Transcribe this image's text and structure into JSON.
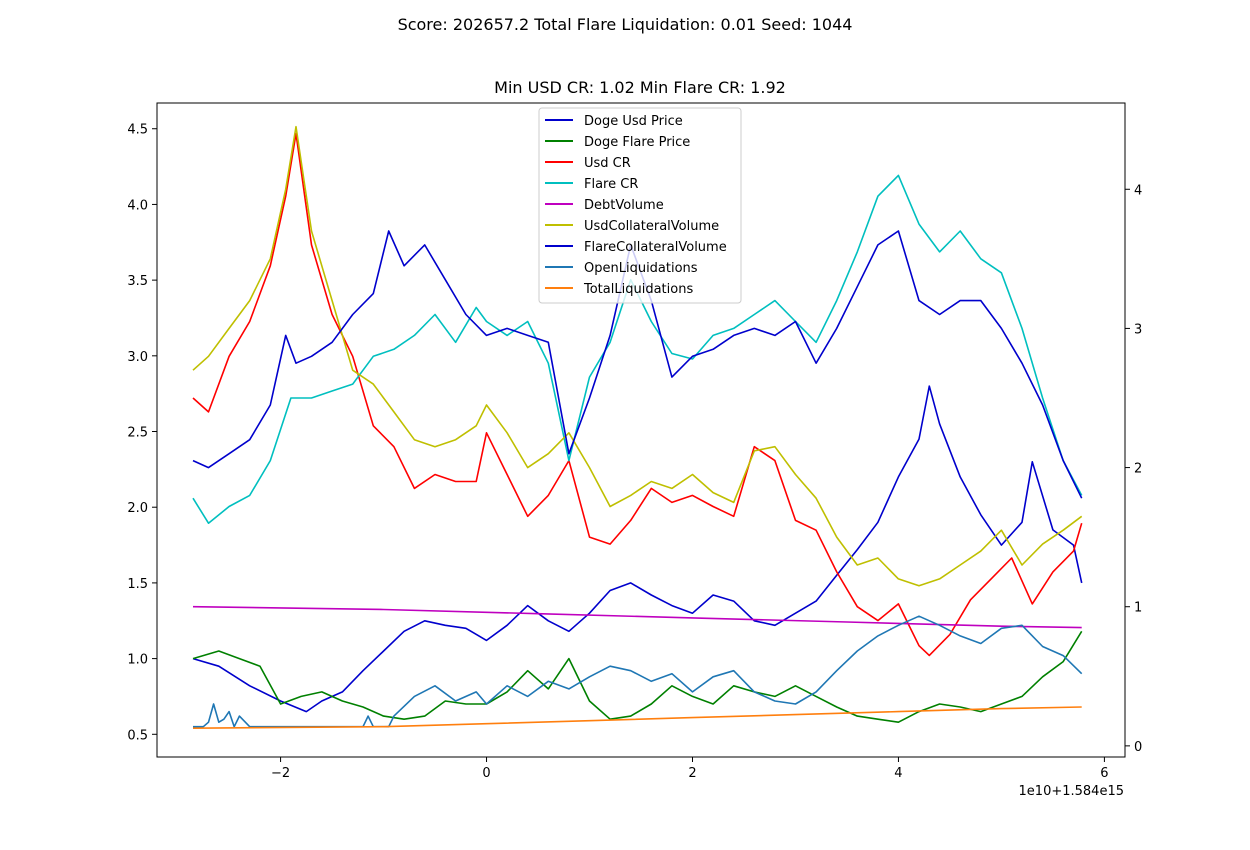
{
  "suptitle": "Score: 202657.2 Total Flare Liquidation: 0.01 Seed: 1044",
  "chart_data": {
    "type": "line",
    "title": "Min USD CR: 1.02 Min Flare CR: 1.92",
    "x_offset_label": "1e10+1.584e15",
    "xlim": [
      -3.2,
      6.2
    ],
    "xticks": [
      -2,
      0,
      2,
      4,
      6
    ],
    "xtick_labels": [
      "−2",
      "0",
      "2",
      "4",
      "6"
    ],
    "ylim_left": [
      0.35,
      4.67
    ],
    "yticks_left": [
      0.5,
      1.0,
      1.5,
      2.0,
      2.5,
      3.0,
      3.5,
      4.0,
      4.5
    ],
    "ytick_labels_left": [
      "0.5",
      "1.0",
      "1.5",
      "2.0",
      "2.5",
      "3.0",
      "3.5",
      "4.0",
      "4.5"
    ],
    "ylim_right": [
      -0.08,
      4.62
    ],
    "yticks_right": [
      0,
      1,
      2,
      3,
      4
    ],
    "ytick_labels_right": [
      "0",
      "1",
      "2",
      "3",
      "4"
    ],
    "legend_position": "upper center",
    "series": [
      {
        "name": "Doge Usd Price",
        "color": "#0000cc",
        "axis": "left",
        "x": [
          -2.85,
          -2.6,
          -2.3,
          -2.0,
          -1.75,
          -1.6,
          -1.4,
          -1.2,
          -1.0,
          -0.8,
          -0.6,
          -0.4,
          -0.2,
          0.0,
          0.2,
          0.4,
          0.6,
          0.8,
          1.0,
          1.2,
          1.4,
          1.6,
          1.8,
          2.0,
          2.2,
          2.4,
          2.6,
          2.8,
          3.0,
          3.2,
          3.4,
          3.6,
          3.8,
          4.0,
          4.2,
          4.3,
          4.4,
          4.6,
          4.8,
          5.0,
          5.2,
          5.3,
          5.5,
          5.7,
          5.78
        ],
        "y": [
          1.0,
          0.95,
          0.82,
          0.72,
          0.65,
          0.72,
          0.78,
          0.92,
          1.05,
          1.18,
          1.25,
          1.22,
          1.2,
          1.12,
          1.22,
          1.35,
          1.25,
          1.18,
          1.3,
          1.45,
          1.5,
          1.42,
          1.35,
          1.3,
          1.42,
          1.38,
          1.25,
          1.22,
          1.3,
          1.38,
          1.55,
          1.72,
          1.9,
          2.2,
          2.45,
          2.8,
          2.55,
          2.2,
          1.95,
          1.75,
          1.9,
          2.3,
          1.85,
          1.75,
          1.5
        ]
      },
      {
        "name": "Doge Flare Price",
        "color": "#008000",
        "axis": "left",
        "x": [
          -2.85,
          -2.6,
          -2.4,
          -2.2,
          -2.0,
          -1.8,
          -1.6,
          -1.4,
          -1.2,
          -1.0,
          -0.8,
          -0.6,
          -0.4,
          -0.2,
          0.0,
          0.2,
          0.4,
          0.6,
          0.8,
          1.0,
          1.2,
          1.4,
          1.6,
          1.8,
          2.0,
          2.2,
          2.4,
          2.6,
          2.8,
          3.0,
          3.2,
          3.4,
          3.6,
          3.8,
          4.0,
          4.2,
          4.4,
          4.6,
          4.8,
          5.0,
          5.2,
          5.4,
          5.6,
          5.78
        ],
        "y": [
          1.0,
          1.05,
          1.0,
          0.95,
          0.7,
          0.75,
          0.78,
          0.72,
          0.68,
          0.62,
          0.6,
          0.62,
          0.72,
          0.7,
          0.7,
          0.78,
          0.92,
          0.8,
          1.0,
          0.72,
          0.6,
          0.62,
          0.7,
          0.82,
          0.75,
          0.7,
          0.82,
          0.78,
          0.75,
          0.82,
          0.75,
          0.68,
          0.62,
          0.6,
          0.58,
          0.65,
          0.7,
          0.68,
          0.65,
          0.7,
          0.75,
          0.88,
          0.98,
          1.18
        ]
      },
      {
        "name": "Usd CR",
        "color": "#ff0000",
        "axis": "right",
        "x": [
          -2.85,
          -2.7,
          -2.5,
          -2.3,
          -2.1,
          -1.95,
          -1.85,
          -1.7,
          -1.5,
          -1.3,
          -1.1,
          -0.9,
          -0.7,
          -0.5,
          -0.3,
          -0.1,
          0.0,
          0.2,
          0.4,
          0.6,
          0.8,
          1.0,
          1.2,
          1.4,
          1.6,
          1.8,
          2.0,
          2.2,
          2.4,
          2.6,
          2.8,
          3.0,
          3.2,
          3.4,
          3.6,
          3.8,
          4.0,
          4.2,
          4.3,
          4.5,
          4.7,
          4.9,
          5.1,
          5.3,
          5.5,
          5.7,
          5.78
        ],
        "y": [
          2.5,
          2.4,
          2.8,
          3.05,
          3.45,
          3.95,
          4.4,
          3.6,
          3.1,
          2.8,
          2.3,
          2.15,
          1.85,
          1.95,
          1.9,
          1.9,
          2.25,
          1.95,
          1.65,
          1.8,
          2.05,
          1.5,
          1.45,
          1.62,
          1.85,
          1.75,
          1.8,
          1.72,
          1.65,
          2.15,
          2.05,
          1.62,
          1.55,
          1.25,
          1.0,
          0.9,
          1.02,
          0.72,
          0.65,
          0.8,
          1.05,
          1.2,
          1.35,
          1.02,
          1.25,
          1.4,
          1.6
        ]
      },
      {
        "name": "Flare CR",
        "color": "#00bfbf",
        "axis": "right",
        "x": [
          -2.85,
          -2.7,
          -2.5,
          -2.3,
          -2.1,
          -1.9,
          -1.7,
          -1.5,
          -1.3,
          -1.1,
          -0.9,
          -0.7,
          -0.5,
          -0.3,
          -0.1,
          0.0,
          0.2,
          0.4,
          0.6,
          0.8,
          1.0,
          1.2,
          1.4,
          1.6,
          1.8,
          2.0,
          2.2,
          2.4,
          2.6,
          2.8,
          3.0,
          3.2,
          3.4,
          3.6,
          3.8,
          4.0,
          4.2,
          4.4,
          4.6,
          4.8,
          5.0,
          5.2,
          5.4,
          5.6,
          5.78
        ],
        "y": [
          1.78,
          1.6,
          1.72,
          1.8,
          2.05,
          2.5,
          2.5,
          2.55,
          2.6,
          2.8,
          2.85,
          2.95,
          3.1,
          2.9,
          3.15,
          3.05,
          2.95,
          3.05,
          2.75,
          2.05,
          2.65,
          2.9,
          3.35,
          3.05,
          2.82,
          2.78,
          2.95,
          3.0,
          3.1,
          3.2,
          3.05,
          2.9,
          3.2,
          3.55,
          3.95,
          4.1,
          3.75,
          3.55,
          3.7,
          3.5,
          3.4,
          3.0,
          2.5,
          2.05,
          1.8
        ]
      },
      {
        "name": "DebtVolume",
        "color": "#bf00bf",
        "axis": "right",
        "x": [
          -2.85,
          -1.0,
          0.5,
          2.0,
          3.5,
          5.0,
          5.78
        ],
        "y": [
          1.0,
          0.98,
          0.95,
          0.92,
          0.89,
          0.86,
          0.85
        ]
      },
      {
        "name": "UsdCollateralVolume",
        "color": "#bfbf00",
        "axis": "right",
        "x": [
          -2.85,
          -2.7,
          -2.5,
          -2.3,
          -2.1,
          -1.95,
          -1.85,
          -1.7,
          -1.5,
          -1.3,
          -1.1,
          -0.9,
          -0.7,
          -0.5,
          -0.3,
          -0.1,
          0.0,
          0.2,
          0.4,
          0.6,
          0.8,
          1.0,
          1.2,
          1.4,
          1.6,
          1.8,
          2.0,
          2.2,
          2.4,
          2.6,
          2.8,
          3.0,
          3.2,
          3.4,
          3.6,
          3.8,
          4.0,
          4.2,
          4.4,
          4.6,
          4.8,
          5.0,
          5.2,
          5.4,
          5.6,
          5.78
        ],
        "y": [
          2.7,
          2.8,
          3.0,
          3.2,
          3.5,
          4.0,
          4.45,
          3.7,
          3.2,
          2.7,
          2.6,
          2.4,
          2.2,
          2.15,
          2.2,
          2.3,
          2.45,
          2.25,
          2.0,
          2.1,
          2.25,
          2.0,
          1.72,
          1.8,
          1.9,
          1.85,
          1.95,
          1.82,
          1.75,
          2.12,
          2.15,
          1.95,
          1.78,
          1.5,
          1.3,
          1.35,
          1.2,
          1.15,
          1.2,
          1.3,
          1.4,
          1.55,
          1.3,
          1.45,
          1.55,
          1.65
        ]
      },
      {
        "name": "FlareCollateralVolume",
        "color": "#0000cc",
        "axis": "right",
        "x": [
          -2.85,
          -2.7,
          -2.5,
          -2.3,
          -2.1,
          -1.95,
          -1.85,
          -1.7,
          -1.5,
          -1.3,
          -1.1,
          -0.95,
          -0.8,
          -0.6,
          -0.4,
          -0.2,
          0.0,
          0.2,
          0.4,
          0.6,
          0.8,
          1.0,
          1.2,
          1.4,
          1.6,
          1.8,
          2.0,
          2.2,
          2.4,
          2.6,
          2.8,
          3.0,
          3.2,
          3.4,
          3.6,
          3.8,
          4.0,
          4.2,
          4.4,
          4.6,
          4.8,
          5.0,
          5.2,
          5.4,
          5.6,
          5.78
        ],
        "y": [
          2.05,
          2.0,
          2.1,
          2.2,
          2.45,
          2.95,
          2.75,
          2.8,
          2.9,
          3.1,
          3.25,
          3.7,
          3.45,
          3.6,
          3.35,
          3.1,
          2.95,
          3.0,
          2.95,
          2.9,
          2.1,
          2.5,
          2.95,
          3.6,
          3.2,
          2.65,
          2.8,
          2.85,
          2.95,
          3.0,
          2.95,
          3.05,
          2.75,
          3.0,
          3.3,
          3.6,
          3.7,
          3.2,
          3.1,
          3.2,
          3.2,
          3.0,
          2.75,
          2.45,
          2.05,
          1.78
        ]
      },
      {
        "name": "OpenLiquidations",
        "color": "#1f77b4",
        "axis": "left",
        "x": [
          -2.85,
          -2.8,
          -2.75,
          -2.7,
          -2.65,
          -2.6,
          -2.55,
          -2.5,
          -2.45,
          -2.4,
          -2.3,
          -2.0,
          -1.5,
          -1.2,
          -1.15,
          -1.1,
          -1.0,
          -0.95,
          -0.9,
          -0.7,
          -0.5,
          -0.3,
          -0.1,
          0.0,
          0.2,
          0.4,
          0.6,
          0.8,
          1.0,
          1.2,
          1.4,
          1.6,
          1.8,
          2.0,
          2.2,
          2.4,
          2.6,
          2.8,
          3.0,
          3.2,
          3.4,
          3.6,
          3.8,
          4.0,
          4.2,
          4.4,
          4.6,
          4.8,
          5.0,
          5.2,
          5.4,
          5.6,
          5.78
        ],
        "y": [
          0.55,
          0.55,
          0.55,
          0.58,
          0.7,
          0.58,
          0.6,
          0.65,
          0.55,
          0.62,
          0.55,
          0.55,
          0.55,
          0.55,
          0.62,
          0.55,
          0.55,
          0.55,
          0.62,
          0.75,
          0.82,
          0.72,
          0.78,
          0.7,
          0.82,
          0.75,
          0.85,
          0.8,
          0.88,
          0.95,
          0.92,
          0.85,
          0.9,
          0.78,
          0.88,
          0.92,
          0.78,
          0.72,
          0.7,
          0.78,
          0.92,
          1.05,
          1.15,
          1.22,
          1.28,
          1.22,
          1.15,
          1.1,
          1.2,
          1.22,
          1.08,
          1.02,
          0.9
        ]
      },
      {
        "name": "TotalLiquidations",
        "color": "#ff7f0e",
        "axis": "left",
        "x": [
          -2.85,
          -1.0,
          0.0,
          1.0,
          2.0,
          3.0,
          4.0,
          5.0,
          5.78
        ],
        "y": [
          0.54,
          0.55,
          0.57,
          0.59,
          0.61,
          0.63,
          0.65,
          0.67,
          0.68
        ]
      }
    ]
  }
}
